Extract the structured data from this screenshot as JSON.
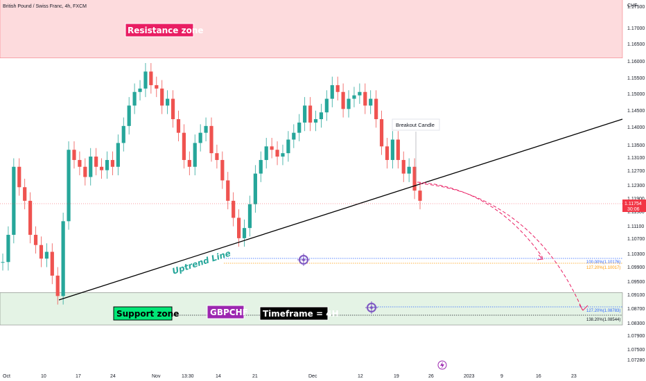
{
  "chart_data": {
    "type": "candlestick",
    "title": "British Pound / Swiss Franc, 4h, FXCM",
    "currency": "CHF",
    "y_ticks": [
      "1.17500",
      "1.17000",
      "1.16500",
      "1.16000",
      "1.15500",
      "1.15000",
      "1.14500",
      "1.14000",
      "1.13500",
      "1.13100",
      "1.12700",
      "1.12300",
      "1.11900",
      "1.11500",
      "1.11100",
      "1.10700",
      "1.10300",
      "1.09900",
      "1.09500",
      "1.09100",
      "1.08700",
      "1.08300",
      "1.07900",
      "1.07500",
      "1.07280"
    ],
    "x_ticks": [
      "Oct",
      "10",
      "17",
      "24",
      "Nov",
      "13:30",
      "14",
      "21",
      "Dec",
      "12",
      "19",
      "26",
      "2023",
      "9",
      "16",
      "23"
    ],
    "price_tag": {
      "price": "1.11754",
      "timer": "30:06",
      "color": "#f23645"
    },
    "resistance_zone": {
      "label": "Resistance zone",
      "from": 1.16,
      "to": 1.1775,
      "color": "#f23645"
    },
    "support_zone": {
      "label": "Support zone",
      "from": 1.0815,
      "to": 1.091,
      "color": "#4caf50"
    },
    "uptrend_line": {
      "label": "Uptrend Line",
      "color": "#000000"
    },
    "breakout_label": "Breakout Candle",
    "symbol_badge": "GBPCHF",
    "timeframe_badge": "Timeframe = 4H",
    "fib_levels": [
      {
        "label": "100.00%(1.10176)",
        "value": 1.10176,
        "color": "#2962ff"
      },
      {
        "label": "127.20%(1.10017)",
        "value": 1.10017,
        "color": "#ff9800"
      },
      {
        "label": "127.20%(1.08783)",
        "value": 1.08783,
        "color": "#2962ff"
      },
      {
        "label": "138.20%(1.08544)",
        "value": 1.08544,
        "color": "#131722"
      }
    ],
    "series": [
      {
        "name": "GBPCHF",
        "values": [
          1.1,
          1.108,
          1.128,
          1.122,
          1.118,
          1.108,
          1.105,
          1.101,
          1.103,
          1.096,
          1.09,
          1.112,
          1.133,
          1.13,
          1.128,
          1.125,
          1.131,
          1.128,
          1.127,
          1.13,
          1.128,
          1.135,
          1.14,
          1.146,
          1.15,
          1.151,
          1.156,
          1.152,
          1.151,
          1.146,
          1.148,
          1.142,
          1.138,
          1.13,
          1.128,
          1.135,
          1.138,
          1.14,
          1.132,
          1.13,
          1.124,
          1.118,
          1.113,
          1.107,
          1.11,
          1.117,
          1.126,
          1.13,
          1.134,
          1.133,
          1.131,
          1.132,
          1.136,
          1.138,
          1.141,
          1.146,
          1.141,
          1.142,
          1.144,
          1.148,
          1.152,
          1.15,
          1.145,
          1.148,
          1.149,
          1.15,
          1.146,
          1.148,
          1.142,
          1.134,
          1.13,
          1.136,
          1.13,
          1.126,
          1.128,
          1.121,
          1.118
        ]
      }
    ]
  }
}
